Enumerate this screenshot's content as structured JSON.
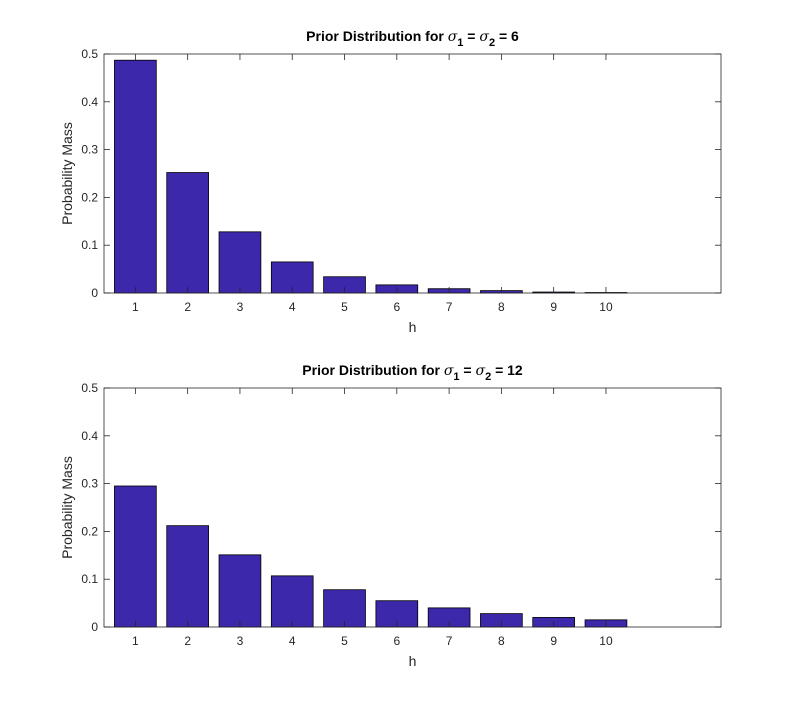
{
  "colors": {
    "bar_fill": "#3c28aa",
    "bar_edge": "#000000",
    "axis": "#262626",
    "background": "#ffffff"
  },
  "chart_data": [
    {
      "type": "bar",
      "title": {
        "prefix": "Prior Distribution for ",
        "sym1": "σ",
        "sub1": "1",
        "mid": " = ",
        "sym2": "σ",
        "sub2": "2",
        "suffix": " = 6"
      },
      "xlabel": "h",
      "ylabel": "Probability Mass",
      "categories": [
        "1",
        "2",
        "3",
        "4",
        "5",
        "6",
        "7",
        "8",
        "9",
        "10"
      ],
      "values": [
        0.487,
        0.252,
        0.128,
        0.065,
        0.034,
        0.017,
        0.009,
        0.005,
        0.002,
        0.001
      ],
      "xlim": [
        0.4,
        12.2
      ],
      "ylim": [
        0,
        0.5
      ],
      "yticks": [
        "0",
        "0.1",
        "0.2",
        "0.3",
        "0.4",
        "0.5"
      ],
      "grid": false,
      "legend": "none"
    },
    {
      "type": "bar",
      "title": {
        "prefix": "Prior Distribution for ",
        "sym1": "σ",
        "sub1": "1",
        "mid": " = ",
        "sym2": "σ",
        "sub2": "2",
        "suffix": " = 12"
      },
      "xlabel": "h",
      "ylabel": "Probability Mass",
      "categories": [
        "1",
        "2",
        "3",
        "4",
        "5",
        "6",
        "7",
        "8",
        "9",
        "10"
      ],
      "values": [
        0.295,
        0.212,
        0.151,
        0.107,
        0.078,
        0.055,
        0.04,
        0.028,
        0.02,
        0.015
      ],
      "xlim": [
        0.4,
        12.2
      ],
      "ylim": [
        0,
        0.5
      ],
      "yticks": [
        "0",
        "0.1",
        "0.2",
        "0.3",
        "0.4",
        "0.5"
      ],
      "grid": false,
      "legend": "none"
    }
  ]
}
